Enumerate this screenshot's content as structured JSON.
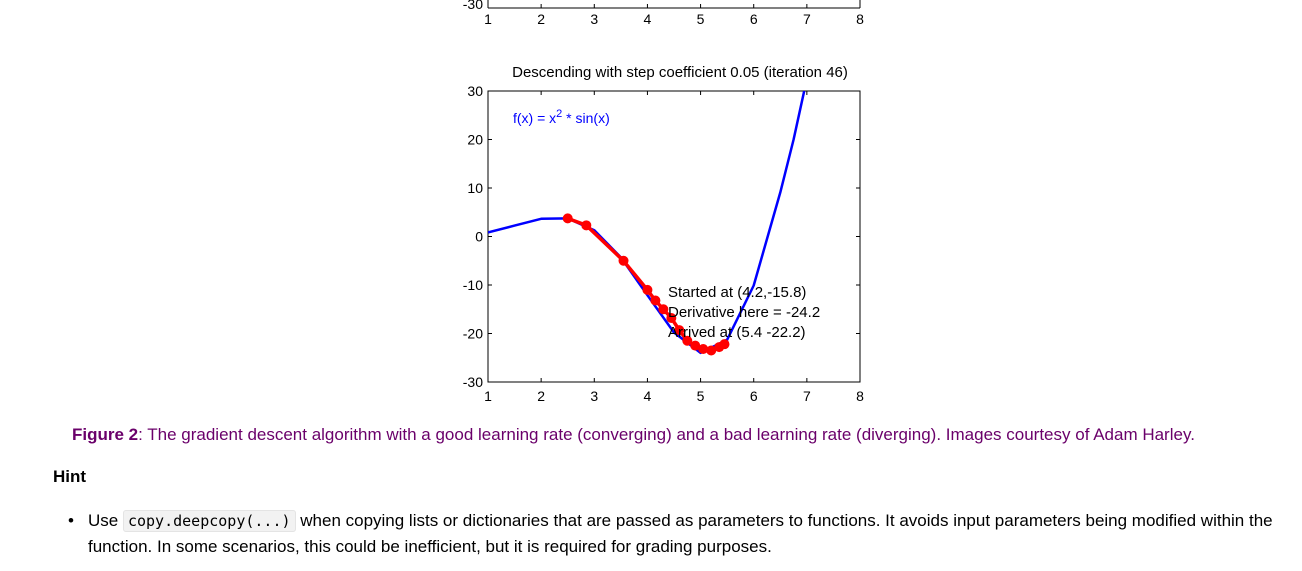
{
  "top_axis": {
    "y_tick_label": "-30",
    "x_tick_labels": [
      "1",
      "2",
      "3",
      "4",
      "5",
      "6",
      "7",
      "8"
    ]
  },
  "chart_data": {
    "type": "line",
    "title": "Descending with step coefficient 0.05 (iteration 46)",
    "function_label": "f(x) = x",
    "function_exponent": "2",
    "function_suffix": " * sin(x)",
    "xlim": [
      1,
      8
    ],
    "ylim": [
      -30,
      30
    ],
    "x_ticks": [
      "1",
      "2",
      "3",
      "4",
      "5",
      "6",
      "7",
      "8"
    ],
    "y_ticks": [
      "30",
      "20",
      "10",
      "0",
      "-10",
      "-20",
      "-30"
    ],
    "series": [
      {
        "color": "#0000ff",
        "points": [
          [
            1,
            0.84
          ],
          [
            1.5,
            2.24
          ],
          [
            2,
            3.64
          ],
          [
            2.5,
            3.74
          ],
          [
            3,
            1.27
          ],
          [
            3.5,
            -4.3
          ],
          [
            4,
            -12.1
          ],
          [
            4.5,
            -19.8
          ],
          [
            5,
            -24.0
          ],
          [
            5.5,
            -21.3
          ],
          [
            6,
            -10.1
          ],
          [
            6.5,
            9.1
          ],
          [
            6.75,
            20.0
          ],
          [
            6.95,
            30
          ]
        ]
      },
      {
        "color": "#ff0000",
        "points": [
          [
            2.5,
            3.74
          ],
          [
            2.85,
            2.3
          ],
          [
            3.55,
            -5.0
          ],
          [
            4.0,
            -11.0
          ],
          [
            4.15,
            -13.2
          ],
          [
            4.3,
            -15.0
          ],
          [
            4.45,
            -16.8
          ],
          [
            4.6,
            -19.3
          ],
          [
            4.75,
            -21.5
          ],
          [
            4.9,
            -22.5
          ],
          [
            5.05,
            -23.2
          ],
          [
            5.2,
            -23.5
          ],
          [
            5.35,
            -22.8
          ],
          [
            5.45,
            -22.2
          ]
        ]
      }
    ],
    "annotation": [
      "Started at (4.2,-15.8)",
      "Derivative here = -24.2",
      "Arrived at (5.4 -22.2)"
    ]
  },
  "caption": {
    "label": "Figure 2",
    "text": ": The gradient descent algorithm with a good learning rate (converging) and a bad learning rate (diverging). Images courtesy of Adam Harley."
  },
  "hint": {
    "heading": "Hint",
    "bullet": "•",
    "prefix": "Use ",
    "code": "copy.deepcopy(...)",
    "suffix": " when copying lists or dictionaries that are passed as parameters to functions. It avoids input parameters being modified within the function. In some scenarios, this could be inefficient, but it is required for grading purposes."
  }
}
